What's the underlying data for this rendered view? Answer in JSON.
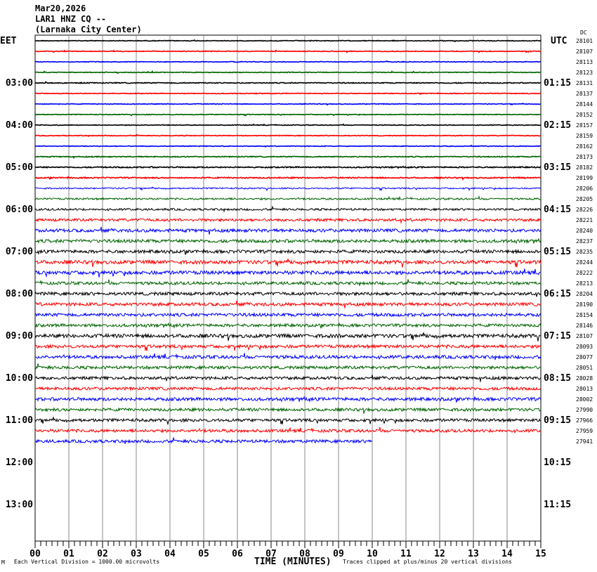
{
  "header": {
    "date": "Mar20,2026",
    "station": "LAR1 HNZ CQ --",
    "location": "(Larnaka City Center)",
    "left_tz": "EET",
    "right_tz": "UTC",
    "dc_header": "DC"
  },
  "footer": {
    "corner_mark": "M",
    "scale_note": "Each Vertical Division = 1000.00 microvolts",
    "xlabel": "TIME (MINUTES)",
    "clip_note": "Traces clipped at plus/minus 20 vertical divisions"
  },
  "chart_data": {
    "type": "line",
    "subtype": "helicorder",
    "xlabel": "TIME (MINUTES)",
    "xlim": [
      0,
      15
    ],
    "x_tick_labels": [
      "00",
      "01",
      "02",
      "03",
      "04",
      "05",
      "06",
      "07",
      "08",
      "09",
      "10",
      "11",
      "12",
      "13",
      "14",
      "15"
    ],
    "rows_per_hour": 4,
    "total_rows": 44,
    "trace_colors": [
      "#000000",
      "#ff0000",
      "#0000ff",
      "#006400"
    ],
    "left_hour_labels": [
      "03:00",
      "04:00",
      "05:00",
      "06:00",
      "07:00",
      "08:00",
      "09:00",
      "10:00",
      "11:00",
      "12:00",
      "13:00"
    ],
    "right_hour_labels": [
      "01:15",
      "02:15",
      "03:15",
      "04:15",
      "05:15",
      "06:15",
      "07:15",
      "08:15",
      "09:15",
      "10:15",
      "11:15"
    ],
    "dc_offsets": [
      "28101",
      "28107",
      "28113",
      "28123",
      "28131",
      "28137",
      "28144",
      "28152",
      "28157",
      "28159",
      "28162",
      "28173",
      "28182",
      "28199",
      "28206",
      "28205",
      "28226",
      "28221",
      "28240",
      "28237",
      "28235",
      "28244",
      "28222",
      "28213",
      "28204",
      "28190",
      "28154",
      "28146",
      "28107",
      "28093",
      "28077",
      "28051",
      "28028",
      "28013",
      "28002",
      "27990",
      "27966",
      "27959",
      "27941"
    ],
    "noise_level": [
      0.3,
      0.3,
      0.3,
      0.3,
      0.4,
      0.3,
      0.3,
      0.3,
      0.3,
      0.3,
      0.3,
      0.4,
      0.5,
      0.5,
      0.6,
      0.8,
      0.9,
      1.2,
      1.4,
      1.4,
      1.4,
      1.6,
      1.6,
      1.3,
      1.4,
      1.4,
      1.4,
      1.3,
      1.6,
      1.4,
      1.4,
      1.3,
      1.3,
      1.3,
      1.4,
      1.3,
      1.3,
      1.3,
      1.3
    ],
    "last_row_end_minute": 10
  }
}
